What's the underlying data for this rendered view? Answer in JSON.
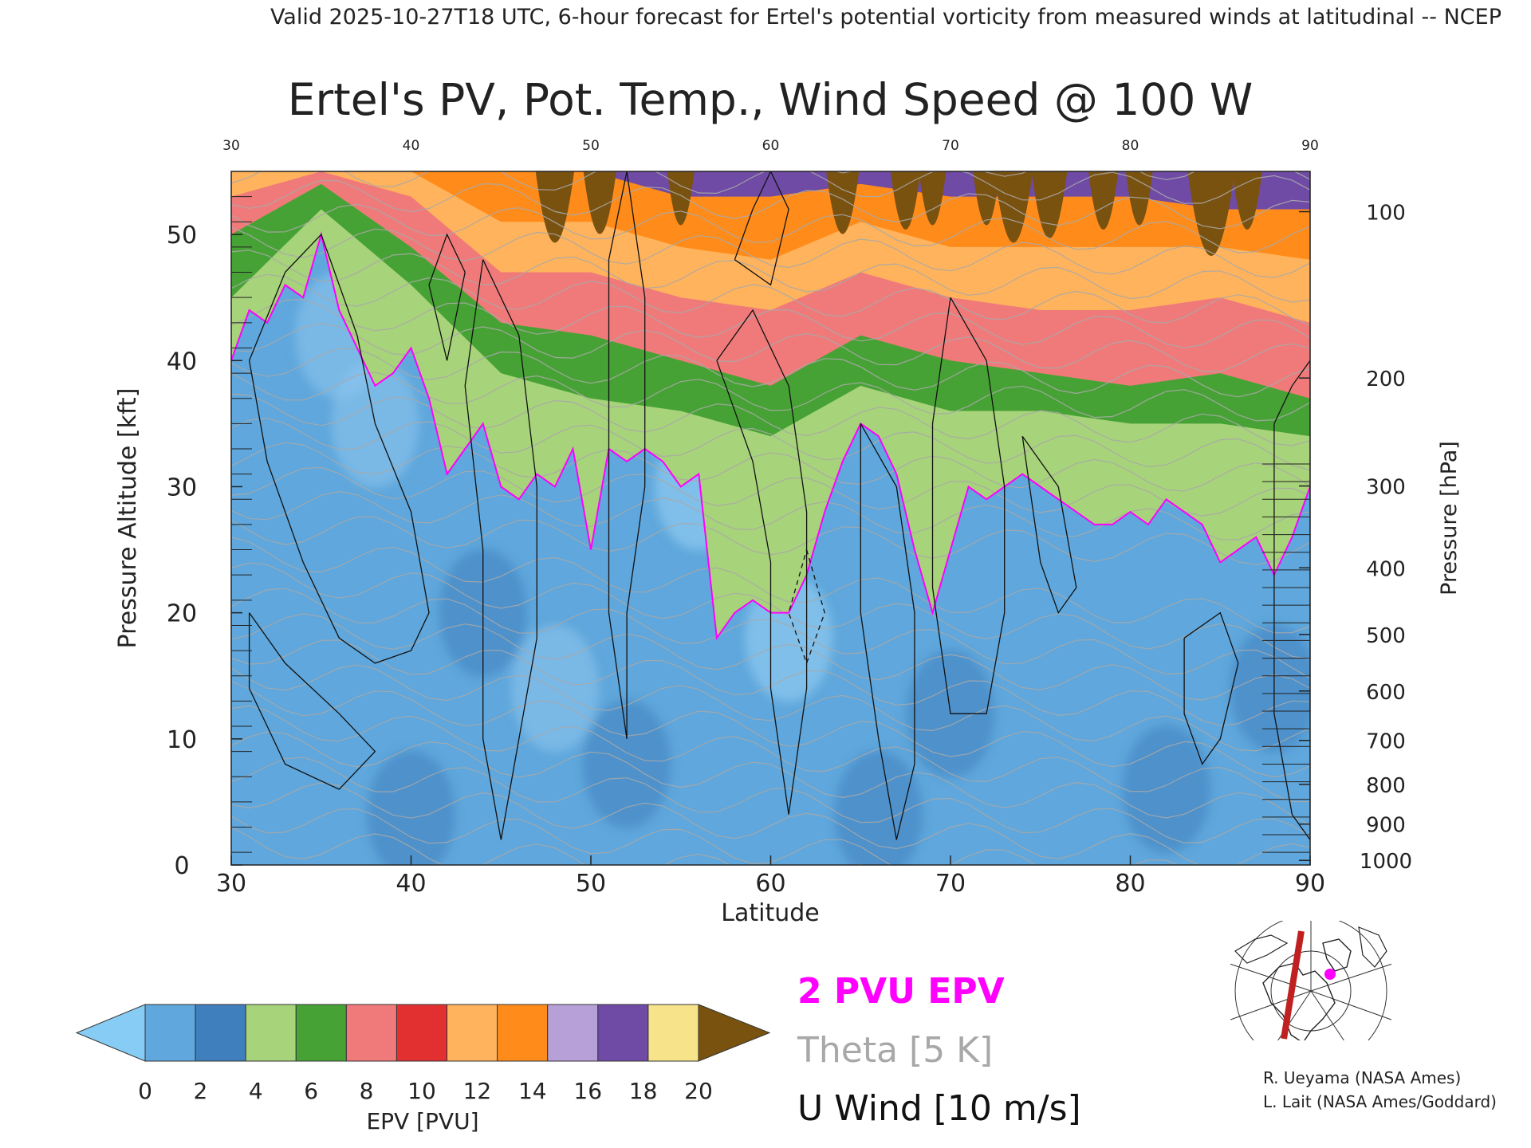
{
  "header": {
    "valid_line": "Valid 2025-10-27T18 UTC, 6-hour forecast for Ertel's potential vorticity from measured winds at latitudinal -- NCEP"
  },
  "chart_data": {
    "type": "heatmap",
    "title": "Ertel's PV, Pot. Temp., Wind Speed @ 100 W",
    "xlabel": "Latitude",
    "ylabel": "Pressure Altitude [kft]",
    "y2label": "Pressure [hPa]",
    "xlim": [
      30,
      90
    ],
    "ylim": [
      0,
      55
    ],
    "x_ticks": [
      30,
      40,
      50,
      60,
      70,
      80,
      90
    ],
    "x_tick_labels": [
      "30",
      "40",
      "50",
      "60",
      "70",
      "80",
      "90"
    ],
    "top_ticks": [
      30,
      40,
      50,
      60,
      70,
      80,
      90
    ],
    "top_tick_labels": [
      "30",
      "40",
      "50",
      "60",
      "70",
      "80",
      "90"
    ],
    "y_ticks": [
      0,
      10,
      20,
      30,
      40,
      50
    ],
    "y_tick_labels": [
      "0",
      "10",
      "20",
      "30",
      "40",
      "50"
    ],
    "pressure_ticks": [
      {
        "hpa": 100,
        "label": "100"
      },
      {
        "hpa": 200,
        "label": "200"
      },
      {
        "hpa": 300,
        "label": "300"
      },
      {
        "hpa": 400,
        "label": "400"
      },
      {
        "hpa": 500,
        "label": "500"
      },
      {
        "hpa": 600,
        "label": "600"
      },
      {
        "hpa": 700,
        "label": "700"
      },
      {
        "hpa": 800,
        "label": "800"
      },
      {
        "hpa": 900,
        "label": "900"
      },
      {
        "hpa": 1000,
        "label": "1000"
      }
    ],
    "tropopause_2pvu_kft": [
      [
        30,
        40
      ],
      [
        31,
        44
      ],
      [
        32,
        43
      ],
      [
        33,
        46
      ],
      [
        34,
        45
      ],
      [
        35,
        50
      ],
      [
        36,
        44
      ],
      [
        37,
        41
      ],
      [
        38,
        38
      ],
      [
        39,
        39
      ],
      [
        40,
        41
      ],
      [
        41,
        37
      ],
      [
        42,
        31
      ],
      [
        43,
        33
      ],
      [
        44,
        35
      ],
      [
        45,
        30
      ],
      [
        46,
        29
      ],
      [
        47,
        31
      ],
      [
        48,
        30
      ],
      [
        49,
        33
      ],
      [
        50,
        25
      ],
      [
        51,
        33
      ],
      [
        52,
        32
      ],
      [
        53,
        33
      ],
      [
        54,
        32
      ],
      [
        55,
        30
      ],
      [
        56,
        31
      ],
      [
        57,
        18
      ],
      [
        58,
        20
      ],
      [
        59,
        21
      ],
      [
        60,
        20
      ],
      [
        61,
        20
      ],
      [
        62,
        23
      ],
      [
        63,
        28
      ],
      [
        64,
        32
      ],
      [
        65,
        35
      ],
      [
        66,
        34
      ],
      [
        67,
        31
      ],
      [
        68,
        25
      ],
      [
        69,
        20
      ],
      [
        70,
        25
      ],
      [
        71,
        30
      ],
      [
        72,
        29
      ],
      [
        73,
        30
      ],
      [
        74,
        31
      ],
      [
        75,
        30
      ],
      [
        76,
        29
      ],
      [
        77,
        28
      ],
      [
        78,
        27
      ],
      [
        79,
        27
      ],
      [
        80,
        28
      ],
      [
        81,
        27
      ],
      [
        82,
        29
      ],
      [
        83,
        28
      ],
      [
        84,
        27
      ],
      [
        85,
        24
      ],
      [
        86,
        25
      ],
      [
        87,
        26
      ],
      [
        88,
        23
      ],
      [
        89,
        26
      ],
      [
        90,
        30
      ]
    ],
    "upper_pv_bands": [
      {
        "pv": 6,
        "kft": [
          [
            30,
            45
          ],
          [
            35,
            52
          ],
          [
            40,
            46
          ],
          [
            45,
            39
          ],
          [
            50,
            37
          ],
          [
            55,
            36
          ],
          [
            60,
            34
          ],
          [
            65,
            38
          ],
          [
            70,
            36
          ],
          [
            75,
            36
          ],
          [
            80,
            35
          ],
          [
            85,
            35
          ],
          [
            90,
            34
          ]
        ]
      },
      {
        "pv": 8,
        "kft": [
          [
            30,
            50
          ],
          [
            35,
            54
          ],
          [
            40,
            49
          ],
          [
            45,
            43
          ],
          [
            50,
            42
          ],
          [
            55,
            40
          ],
          [
            60,
            38
          ],
          [
            65,
            42
          ],
          [
            70,
            40
          ],
          [
            75,
            39
          ],
          [
            80,
            38
          ],
          [
            85,
            39
          ],
          [
            90,
            37
          ]
        ]
      },
      {
        "pv": 12,
        "kft": [
          [
            30,
            53
          ],
          [
            35,
            55
          ],
          [
            40,
            53
          ],
          [
            45,
            47
          ],
          [
            50,
            47
          ],
          [
            55,
            45
          ],
          [
            60,
            44
          ],
          [
            65,
            47
          ],
          [
            70,
            45
          ],
          [
            75,
            44
          ],
          [
            80,
            44
          ],
          [
            85,
            45
          ],
          [
            90,
            43
          ]
        ]
      },
      {
        "pv": 14,
        "kft": [
          [
            30,
            55
          ],
          [
            40,
            55
          ],
          [
            45,
            51
          ],
          [
            50,
            51
          ],
          [
            55,
            49
          ],
          [
            60,
            48
          ],
          [
            65,
            51
          ],
          [
            70,
            49
          ],
          [
            75,
            49
          ],
          [
            80,
            49
          ],
          [
            85,
            49
          ],
          [
            90,
            48
          ]
        ]
      },
      {
        "pv": 18,
        "kft": [
          [
            30,
            56
          ],
          [
            45,
            55
          ],
          [
            50,
            55
          ],
          [
            55,
            53
          ],
          [
            60,
            53
          ],
          [
            65,
            54
          ],
          [
            70,
            53
          ],
          [
            75,
            53
          ],
          [
            80,
            53
          ],
          [
            85,
            52
          ],
          [
            90,
            52
          ]
        ]
      }
    ],
    "colorbar": {
      "title": "EPV [PVU]",
      "min": 0,
      "max": 20,
      "tick_labels": [
        "0",
        "2",
        "4",
        "6",
        "8",
        "10",
        "12",
        "14",
        "16",
        "18",
        "20"
      ],
      "colors": [
        "#5fa7dc",
        "#3f7fbd",
        "#a7d37a",
        "#47a235",
        "#f07a7a",
        "#e23030",
        "#ffb35c",
        "#ff8c1a",
        "#b7a0d8",
        "#6f4ba6",
        "#f7e38a"
      ],
      "under_color": "#87ccf5",
      "over_color": "#7a5210"
    },
    "legend": [
      {
        "label": "2 PVU EPV",
        "color": "#ff00ff"
      },
      {
        "label": "Theta [5 K]",
        "color": "#a8a8a8"
      },
      {
        "label": "U Wind [10 m/s]",
        "color": "#111111"
      }
    ]
  },
  "credits": {
    "line1": "R. Ueyama (NASA Ames)",
    "line2": "L. Lait (NASA Ames/Goddard)"
  },
  "colors": {
    "pv_contour": "#ff00ff",
    "theta_contour": "#a8a8a8",
    "wind_contour": "#111111",
    "section_line": "#c02020",
    "location_marker": "#ff00ff"
  },
  "icons": {
    "inset_map": "north-polar-map-icon"
  }
}
